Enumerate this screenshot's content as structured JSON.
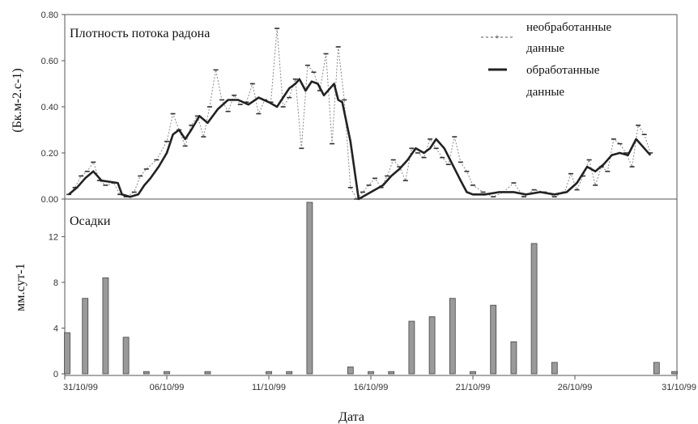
{
  "chart_data": [
    {
      "type": "line",
      "title": "Плотность потока радона",
      "ylabel": "(Бк.м-2.с-1)",
      "ylim": [
        0,
        0.8
      ],
      "yticks": [
        "0.00",
        "0.20",
        "0.40",
        "0.60",
        "0.80"
      ],
      "grid": false,
      "legend_position": "top-right",
      "series": [
        {
          "name": "необработанные данные",
          "style": "dashed-markers",
          "x": [
            0.2,
            0.5,
            0.8,
            1.1,
            1.4,
            1.7,
            2.0,
            2.4,
            2.7,
            3.0,
            3.4,
            3.7,
            4.0,
            4.5,
            5.0,
            5.3,
            5.6,
            5.9,
            6.2,
            6.5,
            6.8,
            7.1,
            7.4,
            7.7,
            8.0,
            8.3,
            8.6,
            8.9,
            9.2,
            9.5,
            9.8,
            10.1,
            10.4,
            10.7,
            11.0,
            11.3,
            11.6,
            11.9,
            12.2,
            12.5,
            12.8,
            13.1,
            13.4,
            13.7,
            14.0,
            14.3,
            14.6,
            14.9,
            15.2,
            15.5,
            15.8,
            16.1,
            16.4,
            16.7,
            17.0,
            17.3,
            17.6,
            17.9,
            18.2,
            18.5,
            18.8,
            19.1,
            19.4,
            19.7,
            20.0,
            20.5,
            21.0,
            21.5,
            22.0,
            22.5,
            23.0,
            23.5,
            24.0,
            24.5,
            24.8,
            25.1,
            25.4,
            25.7,
            26.0,
            26.3,
            26.6,
            26.9,
            27.2,
            27.5,
            27.8,
            28.1,
            28.4,
            28.7
          ],
          "values": [
            0.02,
            0.05,
            0.1,
            0.12,
            0.16,
            0.08,
            0.06,
            0.07,
            0.02,
            0.01,
            0.03,
            0.1,
            0.13,
            0.17,
            0.25,
            0.37,
            0.3,
            0.23,
            0.32,
            0.36,
            0.27,
            0.4,
            0.56,
            0.43,
            0.38,
            0.45,
            0.41,
            0.42,
            0.5,
            0.37,
            0.43,
            0.42,
            0.74,
            0.4,
            0.44,
            0.52,
            0.22,
            0.58,
            0.55,
            0.47,
            0.63,
            0.24,
            0.66,
            0.43,
            0.05,
            0.0,
            0.03,
            0.06,
            0.09,
            0.05,
            0.1,
            0.17,
            0.14,
            0.08,
            0.22,
            0.2,
            0.18,
            0.26,
            0.22,
            0.18,
            0.15,
            0.27,
            0.16,
            0.12,
            0.06,
            0.03,
            0.01,
            0.03,
            0.07,
            0.01,
            0.04,
            0.03,
            0.01,
            0.03,
            0.11,
            0.04,
            0.1,
            0.17,
            0.06,
            0.14,
            0.12,
            0.26,
            0.24,
            0.2,
            0.14,
            0.32,
            0.28,
            0.2
          ]
        },
        {
          "name": "обработанные данные",
          "style": "solid-thick",
          "x": [
            0.2,
            0.6,
            1.0,
            1.4,
            1.8,
            2.6,
            2.8,
            3.2,
            3.6,
            3.9,
            4.2,
            4.6,
            5.0,
            5.3,
            5.6,
            5.9,
            6.2,
            6.6,
            7.0,
            7.5,
            8.0,
            8.5,
            9.0,
            9.5,
            10.0,
            10.4,
            10.7,
            11.0,
            11.3,
            11.5,
            11.8,
            12.1,
            12.4,
            12.7,
            13.0,
            13.2,
            13.4,
            13.6,
            14.0,
            14.4,
            14.8,
            15.2,
            15.6,
            16.0,
            16.4,
            16.8,
            17.2,
            17.6,
            17.9,
            18.2,
            18.6,
            19.0,
            19.4,
            19.7,
            20.0,
            20.6,
            21.3,
            22.0,
            22.6,
            23.3,
            24.0,
            24.6,
            25.1,
            25.6,
            26.0,
            26.4,
            26.8,
            27.2,
            27.6,
            28.0,
            28.4,
            28.7
          ],
          "values": [
            0.02,
            0.05,
            0.09,
            0.12,
            0.08,
            0.07,
            0.02,
            0.01,
            0.02,
            0.06,
            0.09,
            0.14,
            0.2,
            0.28,
            0.3,
            0.26,
            0.3,
            0.36,
            0.33,
            0.39,
            0.43,
            0.43,
            0.41,
            0.44,
            0.42,
            0.4,
            0.44,
            0.48,
            0.5,
            0.52,
            0.47,
            0.51,
            0.5,
            0.45,
            0.48,
            0.5,
            0.43,
            0.42,
            0.25,
            0.0,
            0.02,
            0.04,
            0.06,
            0.1,
            0.13,
            0.17,
            0.22,
            0.2,
            0.22,
            0.26,
            0.22,
            0.15,
            0.08,
            0.03,
            0.02,
            0.02,
            0.03,
            0.03,
            0.02,
            0.03,
            0.02,
            0.03,
            0.07,
            0.14,
            0.12,
            0.15,
            0.19,
            0.2,
            0.19,
            0.26,
            0.22,
            0.19
          ]
        }
      ]
    },
    {
      "type": "bar",
      "title": "Осадки",
      "xlabel": "Дата",
      "ylabel": "мм.сут-1",
      "ylim": [
        0,
        15
      ],
      "yticks": [
        "0",
        "4",
        "8",
        "12"
      ],
      "grid": false,
      "xticks": [
        "31/10/99",
        "06/10/99",
        "11/10/99",
        "16/10/99",
        "21/10/99",
        "26/10/99",
        "31/10/99"
      ],
      "x": [
        0,
        1,
        2,
        3,
        4,
        5,
        7,
        10,
        11,
        12,
        14,
        15,
        16,
        17,
        18,
        19,
        20,
        21,
        22,
        23,
        24,
        29,
        30
      ],
      "values": [
        3.6,
        6.6,
        8.4,
        3.2,
        0.2,
        0.2,
        0.2,
        0.2,
        0.2,
        15.0,
        0.6,
        0.2,
        0.2,
        4.6,
        5.0,
        6.6,
        0.2,
        6.0,
        2.8,
        11.4,
        1.0,
        1.0,
        0.2
      ]
    }
  ],
  "legend": {
    "raw_line1": "необработанные",
    "raw_line2": "данные",
    "proc_line1": "обработанные",
    "proc_line2": "данные"
  }
}
